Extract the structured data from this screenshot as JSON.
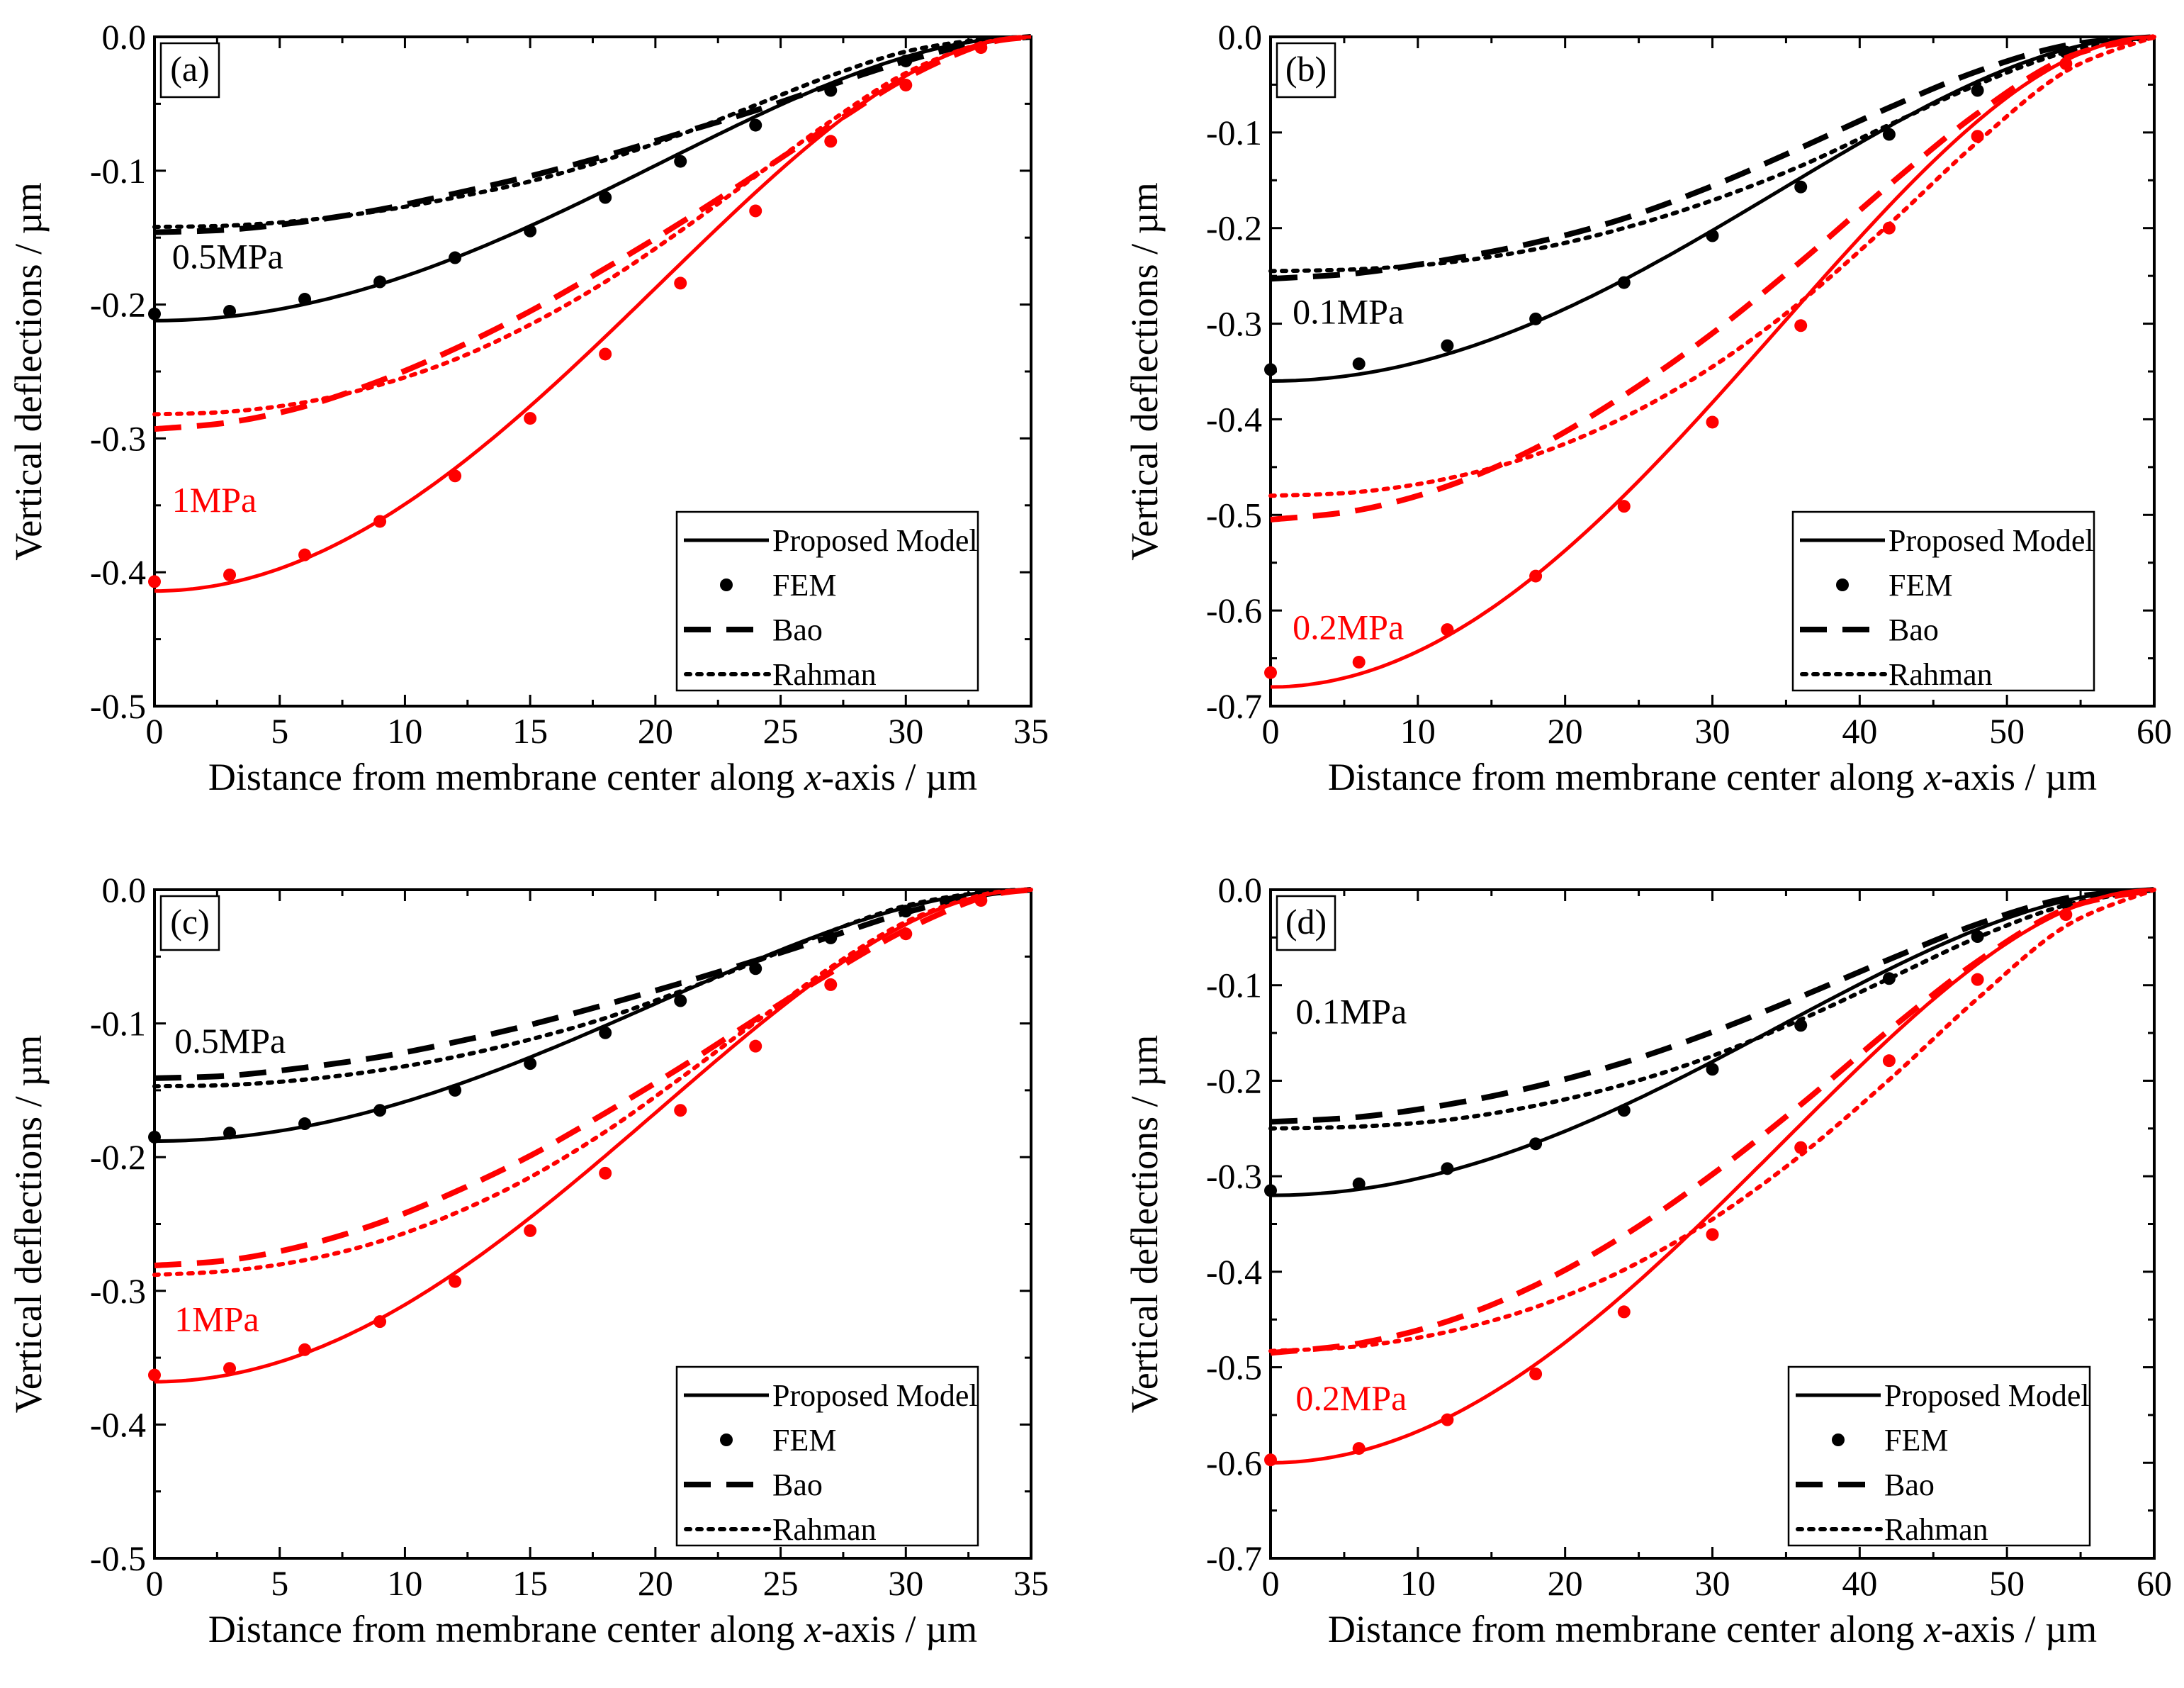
{
  "figure": {
    "colors": {
      "black": "#000000",
      "red": "#ff0000"
    },
    "legend_labels": {
      "proposed": "Proposed Model",
      "fem": "FEM",
      "bao": "Bao",
      "rahman": "Rahman"
    }
  },
  "chart_data": [
    {
      "type": "line",
      "panel_label": "(a)",
      "xlabel_prefix": "Distance from membrane center along ",
      "xlabel_italic": "x",
      "xlabel_suffix": "-axis / µm",
      "ylabel": "Vertical deflections / µm",
      "xlim": [
        0,
        35
      ],
      "ylim": [
        -0.5,
        0
      ],
      "xticks": [
        0,
        5,
        10,
        15,
        20,
        25,
        30,
        35
      ],
      "xtick_labels": [
        "0",
        "5",
        "10",
        "15",
        "20",
        "25",
        "30",
        "35"
      ],
      "yticks": [
        0,
        -0.1,
        -0.2,
        -0.3,
        -0.4,
        -0.5
      ],
      "ytick_labels": [
        "0.0",
        "-0.1",
        "-0.2",
        "-0.3",
        "-0.4",
        "-0.5"
      ],
      "legend_position": "bottom-right",
      "groups": [
        {
          "label": "0.5MPa",
          "color": "#000000",
          "label_at": [
            0.7,
            -0.173
          ],
          "proposed_w0": -0.212,
          "fem": {
            "x": [
              0,
              3,
              6,
              9,
              12,
              15,
              18,
              21,
              24,
              27,
              30,
              33
            ],
            "y": [
              -0.207,
              -0.205,
              -0.196,
              -0.183,
              -0.165,
              -0.145,
              -0.12,
              -0.093,
              -0.066,
              -0.04,
              -0.018,
              -0.004
            ]
          },
          "bao": {
            "x": [
              0,
              3,
              6,
              9,
              12,
              15,
              18,
              21,
              24,
              27,
              30,
              33,
              35
            ],
            "y": [
              -0.146,
              -0.144,
              -0.138,
              -0.129,
              -0.117,
              -0.104,
              -0.089,
              -0.072,
              -0.055,
              -0.036,
              -0.018,
              -0.004,
              0
            ]
          },
          "rahman": {
            "x": [
              0,
              3,
              6,
              9,
              12,
              15,
              18,
              21,
              24,
              27,
              30,
              33,
              35
            ],
            "y": [
              -0.142,
              -0.141,
              -0.137,
              -0.13,
              -0.12,
              -0.108,
              -0.092,
              -0.073,
              -0.051,
              -0.029,
              -0.011,
              -0.002,
              0
            ]
          }
        },
        {
          "label": "1MPa",
          "color": "#ff0000",
          "label_at": [
            0.7,
            -0.355
          ],
          "proposed_w0": -0.414,
          "fem": {
            "x": [
              0,
              3,
              6,
              9,
              12,
              15,
              18,
              21,
              24,
              27,
              30,
              33
            ],
            "y": [
              -0.407,
              -0.402,
              -0.387,
              -0.362,
              -0.328,
              -0.285,
              -0.237,
              -0.184,
              -0.13,
              -0.078,
              -0.036,
              -0.008
            ]
          },
          "bao": {
            "x": [
              0,
              3,
              6,
              9,
              12,
              15,
              18,
              21,
              24,
              27,
              30,
              33,
              35
            ],
            "y": [
              -0.293,
              -0.288,
              -0.276,
              -0.257,
              -0.233,
              -0.205,
              -0.173,
              -0.139,
              -0.103,
              -0.066,
              -0.031,
              -0.006,
              0
            ]
          },
          "rahman": {
            "x": [
              0,
              3,
              6,
              9,
              12,
              15,
              18,
              21,
              24,
              27,
              30,
              33,
              35
            ],
            "y": [
              -0.282,
              -0.28,
              -0.273,
              -0.26,
              -0.241,
              -0.215,
              -0.183,
              -0.145,
              -0.104,
              -0.063,
              -0.027,
              -0.005,
              0
            ]
          }
        }
      ]
    },
    {
      "type": "line",
      "panel_label": "(b)",
      "xlabel_prefix": "Distance from membrane center along ",
      "xlabel_italic": "x",
      "xlabel_suffix": "-axis / µm",
      "ylabel": "Vertical deflections / µm",
      "xlim": [
        0,
        60
      ],
      "ylim": [
        -0.7,
        0
      ],
      "xticks": [
        0,
        10,
        20,
        30,
        40,
        50,
        60
      ],
      "xtick_labels": [
        "0",
        "10",
        "20",
        "30",
        "40",
        "50",
        "60"
      ],
      "yticks": [
        0,
        -0.1,
        -0.2,
        -0.3,
        -0.4,
        -0.5,
        -0.6,
        -0.7
      ],
      "ytick_labels": [
        "0.0",
        "-0.1",
        "-0.2",
        "-0.3",
        "-0.4",
        "-0.5",
        "-0.6",
        "-0.7"
      ],
      "legend_position": "bottom-right",
      "groups": [
        {
          "label": "0.1MPa",
          "color": "#000000",
          "label_at": [
            1.5,
            -0.3
          ],
          "proposed_w0": -0.36,
          "fem": {
            "x": [
              0,
              6,
              12,
              18,
              24,
              30,
              36,
              42,
              48,
              54
            ],
            "y": [
              -0.348,
              -0.342,
              -0.323,
              -0.295,
              -0.257,
              -0.208,
              -0.157,
              -0.102,
              -0.056,
              -0.016
            ]
          },
          "bao": {
            "x": [
              0,
              6,
              12,
              18,
              24,
              30,
              36,
              42,
              48,
              54,
              60
            ],
            "y": [
              -0.253,
              -0.247,
              -0.233,
              -0.215,
              -0.19,
              -0.156,
              -0.116,
              -0.074,
              -0.036,
              -0.009,
              0
            ]
          },
          "rahman": {
            "x": [
              0,
              6,
              12,
              18,
              24,
              30,
              36,
              42,
              48,
              54,
              60
            ],
            "y": [
              -0.245,
              -0.243,
              -0.236,
              -0.222,
              -0.2,
              -0.171,
              -0.135,
              -0.092,
              -0.05,
              -0.016,
              0
            ]
          }
        },
        {
          "label": "0.2MPa",
          "color": "#ff0000",
          "label_at": [
            1.5,
            -0.63
          ],
          "proposed_w0": -0.68,
          "fem": {
            "x": [
              0,
              6,
              12,
              18,
              24,
              30,
              36,
              42,
              48,
              54
            ],
            "y": [
              -0.665,
              -0.654,
              -0.62,
              -0.564,
              -0.491,
              -0.403,
              -0.302,
              -0.2,
              -0.104,
              -0.028
            ]
          },
          "bao": {
            "x": [
              0,
              6,
              12,
              18,
              24,
              30,
              36,
              42,
              48,
              54,
              60
            ],
            "y": [
              -0.505,
              -0.495,
              -0.47,
              -0.43,
              -0.375,
              -0.31,
              -0.235,
              -0.155,
              -0.08,
              -0.022,
              0
            ]
          },
          "rahman": {
            "x": [
              0,
              6,
              12,
              18,
              24,
              30,
              36,
              42,
              48,
              54,
              60
            ],
            "y": [
              -0.48,
              -0.476,
              -0.462,
              -0.437,
              -0.398,
              -0.345,
              -0.277,
              -0.196,
              -0.11,
              -0.036,
              0
            ]
          }
        }
      ]
    },
    {
      "type": "line",
      "panel_label": "(c)",
      "xlabel_prefix": "Distance from membrane center along ",
      "xlabel_italic": "x",
      "xlabel_suffix": "-axis / µm",
      "ylabel": "Vertical deflections / µm",
      "xlim": [
        0,
        35
      ],
      "ylim": [
        -0.5,
        0
      ],
      "xticks": [
        0,
        5,
        10,
        15,
        20,
        25,
        30,
        35
      ],
      "xtick_labels": [
        "0",
        "5",
        "10",
        "15",
        "20",
        "25",
        "30",
        "35"
      ],
      "yticks": [
        0,
        -0.1,
        -0.2,
        -0.3,
        -0.4,
        -0.5
      ],
      "ytick_labels": [
        "0.0",
        "-0.1",
        "-0.2",
        "-0.3",
        "-0.4",
        "-0.5"
      ],
      "legend_position": "bottom-right",
      "groups": [
        {
          "label": "0.5MPa",
          "color": "#000000",
          "label_at": [
            0.8,
            -0.122
          ],
          "proposed_w0": -0.188,
          "fem": {
            "x": [
              0,
              3,
              6,
              9,
              12,
              15,
              18,
              21,
              24,
              27,
              30,
              33
            ],
            "y": [
              -0.185,
              -0.182,
              -0.175,
              -0.165,
              -0.15,
              -0.13,
              -0.107,
              -0.083,
              -0.059,
              -0.036,
              -0.016,
              -0.004
            ]
          },
          "bao": {
            "x": [
              0,
              3,
              6,
              9,
              12,
              15,
              18,
              21,
              24,
              27,
              30,
              33,
              35
            ],
            "y": [
              -0.141,
              -0.139,
              -0.133,
              -0.125,
              -0.114,
              -0.101,
              -0.086,
              -0.07,
              -0.053,
              -0.035,
              -0.017,
              -0.004,
              0
            ]
          },
          "rahman": {
            "x": [
              0,
              3,
              6,
              9,
              12,
              15,
              18,
              21,
              24,
              27,
              30,
              33,
              35
            ],
            "y": [
              -0.147,
              -0.146,
              -0.142,
              -0.135,
              -0.125,
              -0.112,
              -0.096,
              -0.076,
              -0.054,
              -0.031,
              -0.012,
              -0.002,
              0
            ]
          }
        },
        {
          "label": "1MPa",
          "color": "#ff0000",
          "label_at": [
            0.8,
            -0.33
          ],
          "proposed_w0": -0.368,
          "fem": {
            "x": [
              0,
              3,
              6,
              9,
              12,
              15,
              18,
              21,
              24,
              27,
              30,
              33
            ],
            "y": [
              -0.363,
              -0.358,
              -0.344,
              -0.323,
              -0.293,
              -0.255,
              -0.212,
              -0.165,
              -0.117,
              -0.071,
              -0.033,
              -0.008
            ]
          },
          "bao": {
            "x": [
              0,
              3,
              6,
              9,
              12,
              15,
              18,
              21,
              24,
              27,
              30,
              33,
              35
            ],
            "y": [
              -0.281,
              -0.277,
              -0.266,
              -0.249,
              -0.226,
              -0.199,
              -0.167,
              -0.133,
              -0.097,
              -0.062,
              -0.03,
              -0.006,
              0
            ]
          },
          "rahman": {
            "x": [
              0,
              3,
              6,
              9,
              12,
              15,
              18,
              21,
              24,
              27,
              30,
              33,
              35
            ],
            "y": [
              -0.288,
              -0.285,
              -0.277,
              -0.263,
              -0.242,
              -0.215,
              -0.181,
              -0.141,
              -0.099,
              -0.058,
              -0.024,
              -0.004,
              0
            ]
          }
        }
      ]
    },
    {
      "type": "line",
      "panel_label": "(d)",
      "xlabel_prefix": "Distance from membrane center along ",
      "xlabel_italic": "x",
      "xlabel_suffix": "-axis / µm",
      "ylabel": "Vertical deflections / µm",
      "xlim": [
        0,
        60
      ],
      "ylim": [
        -0.7,
        0
      ],
      "xticks": [
        0,
        10,
        20,
        30,
        40,
        50,
        60
      ],
      "xtick_labels": [
        "0",
        "10",
        "20",
        "30",
        "40",
        "50",
        "60"
      ],
      "yticks": [
        0,
        -0.1,
        -0.2,
        -0.3,
        -0.4,
        -0.5,
        -0.6,
        -0.7
      ],
      "ytick_labels": [
        "0.0",
        "-0.1",
        "-0.2",
        "-0.3",
        "-0.4",
        "-0.5",
        "-0.6",
        "-0.7"
      ],
      "legend_position": "bottom-right",
      "groups": [
        {
          "label": "0.1MPa",
          "color": "#000000",
          "label_at": [
            1.7,
            -0.14
          ],
          "proposed_w0": -0.32,
          "fem": {
            "x": [
              0,
              6,
              12,
              18,
              24,
              30,
              36,
              42,
              48,
              54
            ],
            "y": [
              -0.315,
              -0.308,
              -0.292,
              -0.266,
              -0.231,
              -0.188,
              -0.142,
              -0.093,
              -0.049,
              -0.014
            ]
          },
          "bao": {
            "x": [
              0,
              6,
              12,
              18,
              24,
              30,
              36,
              42,
              48,
              54,
              60
            ],
            "y": [
              -0.243,
              -0.238,
              -0.225,
              -0.206,
              -0.181,
              -0.149,
              -0.112,
              -0.073,
              -0.036,
              -0.009,
              0
            ]
          },
          "rahman": {
            "x": [
              0,
              6,
              12,
              18,
              24,
              30,
              36,
              42,
              48,
              54,
              60
            ],
            "y": [
              -0.25,
              -0.248,
              -0.241,
              -0.226,
              -0.204,
              -0.174,
              -0.136,
              -0.093,
              -0.05,
              -0.016,
              0
            ]
          }
        },
        {
          "label": "0.2MPa",
          "color": "#ff0000",
          "label_at": [
            1.7,
            -0.545
          ],
          "proposed_w0": -0.6,
          "fem": {
            "x": [
              0,
              6,
              12,
              18,
              24,
              30,
              36,
              42,
              48,
              54
            ],
            "y": [
              -0.597,
              -0.585,
              -0.555,
              -0.507,
              -0.442,
              -0.361,
              -0.27,
              -0.179,
              -0.094,
              -0.026
            ]
          },
          "bao": {
            "x": [
              0,
              6,
              12,
              18,
              24,
              30,
              36,
              42,
              48,
              54,
              60
            ],
            "y": [
              -0.485,
              -0.475,
              -0.452,
              -0.414,
              -0.362,
              -0.298,
              -0.225,
              -0.147,
              -0.075,
              -0.02,
              0
            ]
          },
          "rahman": {
            "x": [
              0,
              6,
              12,
              18,
              24,
              30,
              36,
              42,
              48,
              54,
              60
            ],
            "y": [
              -0.483,
              -0.478,
              -0.463,
              -0.437,
              -0.398,
              -0.345,
              -0.278,
              -0.199,
              -0.114,
              -0.038,
              0
            ]
          }
        }
      ]
    }
  ]
}
